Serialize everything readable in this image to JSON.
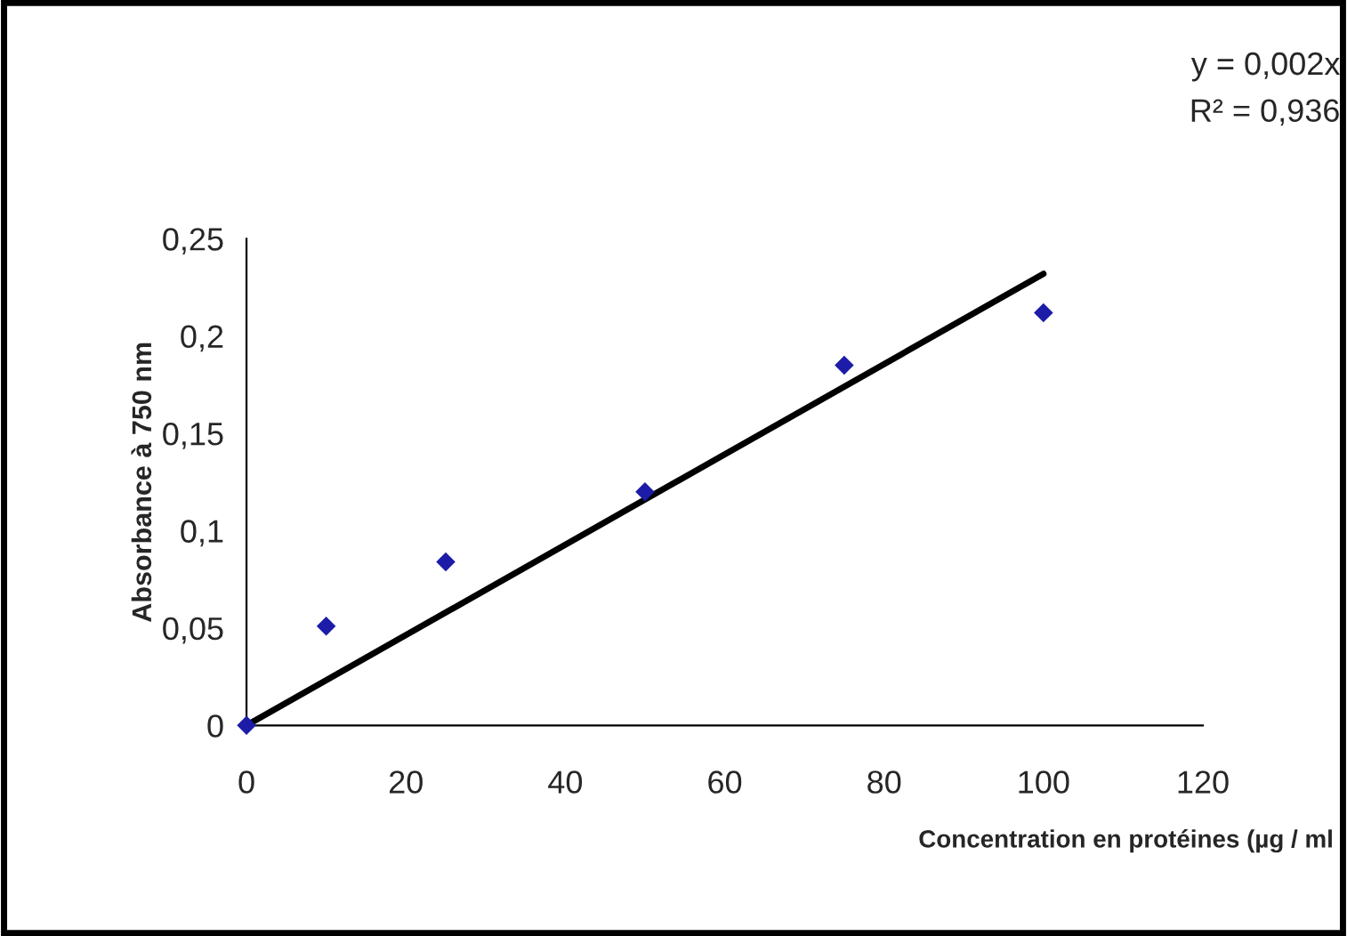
{
  "chart_data": {
    "type": "scatter",
    "xlabel": "Concentration en protéines (µg / ml",
    "ylabel": "Absorbance à 750 nm",
    "annotations": [
      "y = 0,002x",
      "R² = 0,936"
    ],
    "xlim": [
      0,
      120
    ],
    "xticks": [
      0,
      20,
      40,
      60,
      80,
      100,
      120
    ],
    "ylim": [
      0,
      0.25
    ],
    "yticks": [
      {
        "value": 0,
        "label": "0"
      },
      {
        "value": 0.05,
        "label": "0,05"
      },
      {
        "value": 0.1,
        "label": "0,1"
      },
      {
        "value": 0.15,
        "label": "0,15"
      },
      {
        "value": 0.2,
        "label": "0,2"
      },
      {
        "value": 0.25,
        "label": "0,25"
      }
    ],
    "grid": false,
    "legend": false,
    "marker": "diamond",
    "series": [
      {
        "color": "#1c1ca8",
        "x": [
          0,
          10,
          25,
          50,
          75,
          100
        ],
        "values": [
          0,
          0.051,
          0.084,
          0.12,
          0.185,
          0.212
        ]
      },
      {
        "type": "line",
        "color": "#000000",
        "x": [
          0,
          100
        ],
        "values": [
          0,
          0.232
        ],
        "line_style": "solid",
        "marker": "none"
      }
    ]
  }
}
